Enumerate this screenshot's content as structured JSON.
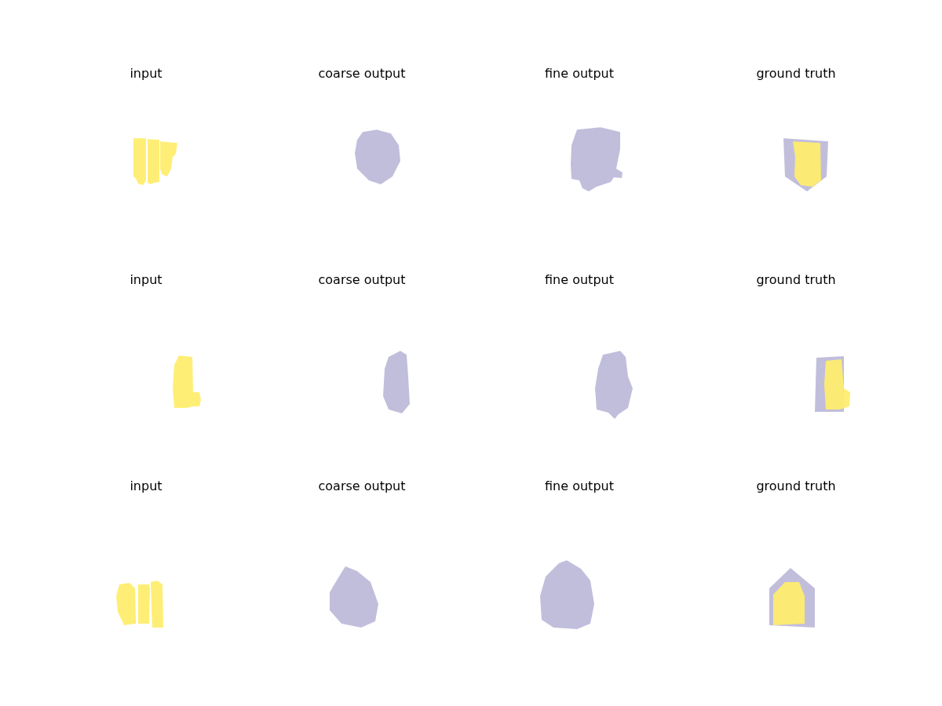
{
  "chart_data": [
    {
      "type": "scatter",
      "title": "input",
      "xlim": [
        0,
        280
      ],
      "ylim": [
        0,
        215
      ],
      "tick_labels": false,
      "grid": false,
      "series": [
        {
          "color": "#ffed6f",
          "values": [
            [
              124,
              149
            ],
            [
              140,
              149
            ],
            [
              140,
              95
            ],
            [
              136,
              89
            ],
            [
              130,
              91
            ],
            [
              126,
              99
            ],
            [
              124,
              99
            ]
          ]
        },
        {
          "color": "#ffed6f",
          "values": [
            [
              142,
              148
            ],
            [
              157,
              147
            ],
            [
              157,
              93
            ],
            [
              150,
              92
            ],
            [
              146,
              90
            ],
            [
              142,
              92
            ]
          ]
        },
        {
          "color": "#ffed6f",
          "values": [
            [
              158,
              145
            ],
            [
              180,
              143
            ],
            [
              178,
              129
            ],
            [
              174,
              125
            ],
            [
              172,
              110
            ],
            [
              167,
              100
            ],
            [
              160,
              103
            ],
            [
              158,
              110
            ]
          ]
        }
      ]
    },
    {
      "type": "scatter",
      "title": "coarse output",
      "xlim": [
        0,
        280
      ],
      "ylim": [
        0,
        215
      ],
      "tick_labels": false,
      "grid": false,
      "series": [
        {
          "color": "#bebada",
          "values": [
            [
              141,
              157
            ],
            [
              159,
              160
            ],
            [
              177,
              155
            ],
            [
              187,
              140
            ],
            [
              189,
              120
            ],
            [
              179,
              100
            ],
            [
              164,
              90
            ],
            [
              149,
              95
            ],
            [
              134,
              110
            ],
            [
              131,
              130
            ],
            [
              134,
              147
            ]
          ]
        }
      ]
    },
    {
      "type": "scatter",
      "title": "fine output",
      "xlim": [
        0,
        280
      ],
      "ylim": [
        0,
        215
      ],
      "tick_labels": false,
      "grid": false,
      "series": [
        {
          "color": "#bebada",
          "values": [
            [
              137,
              160
            ],
            [
              167,
              163
            ],
            [
              192,
              157
            ],
            [
              192,
              135
            ],
            [
              187,
              110
            ],
            [
              195,
              105
            ],
            [
              194,
              98
            ],
            [
              184,
              99
            ],
            [
              180,
              93
            ],
            [
              162,
              87
            ],
            [
              152,
              81
            ],
            [
              144,
              85
            ],
            [
              140,
              95
            ],
            [
              130,
              97
            ],
            [
              129,
              115
            ],
            [
              130,
              140
            ]
          ]
        }
      ]
    },
    {
      "type": "scatter",
      "title": "ground truth",
      "xlim": [
        0,
        280
      ],
      "ylim": [
        0,
        215
      ],
      "tick_labels": false,
      "grid": false,
      "series": [
        {
          "color": "#bebada",
          "values": [
            [
              124,
              149
            ],
            [
              181,
              145
            ],
            [
              179,
              100
            ],
            [
              154,
              81
            ],
            [
              126,
              100
            ]
          ]
        },
        {
          "color": "#ffed6f",
          "values": [
            [
              136,
              145
            ],
            [
              171,
              143
            ],
            [
              172,
              95
            ],
            [
              161,
              87
            ],
            [
              146,
              89
            ],
            [
              138,
              100
            ],
            [
              139,
              125
            ]
          ]
        }
      ]
    },
    {
      "type": "scatter",
      "title": "input",
      "xlim": [
        0,
        280
      ],
      "ylim": [
        0,
        215
      ],
      "tick_labels": false,
      "grid": false,
      "series": [
        {
          "color": "#ffed6f",
          "values": [
            [
              182,
              135
            ],
            [
              199,
              133
            ],
            [
              200,
              88
            ],
            [
              208,
              88
            ],
            [
              210,
              78
            ],
            [
              208,
              70
            ],
            [
              200,
              70
            ],
            [
              192,
              68
            ],
            [
              176,
              68
            ],
            [
              174,
              93
            ],
            [
              176,
              123
            ]
          ]
        }
      ]
    },
    {
      "type": "scatter",
      "title": "coarse output",
      "xlim": [
        0,
        280
      ],
      "ylim": [
        0,
        215
      ],
      "tick_labels": false,
      "grid": false,
      "series": [
        {
          "color": "#bebada",
          "values": [
            [
              174,
              133
            ],
            [
              189,
              141
            ],
            [
              197,
              136
            ],
            [
              199,
              108
            ],
            [
              201,
              73
            ],
            [
              191,
              61
            ],
            [
              174,
              66
            ],
            [
              167,
              83
            ],
            [
              169,
              118
            ]
          ]
        }
      ]
    },
    {
      "type": "scatter",
      "title": "fine output",
      "xlim": [
        0,
        280
      ],
      "ylim": [
        0,
        215
      ],
      "tick_labels": false,
      "grid": false,
      "series": [
        {
          "color": "#bebada",
          "values": [
            [
              170,
              136
            ],
            [
              192,
              141
            ],
            [
              199,
              133
            ],
            [
              202,
              108
            ],
            [
              208,
              93
            ],
            [
              202,
              68
            ],
            [
              190,
              60
            ],
            [
              185,
              54
            ],
            [
              177,
              62
            ],
            [
              162,
              66
            ],
            [
              160,
              93
            ],
            [
              164,
              118
            ]
          ]
        }
      ]
    },
    {
      "type": "scatter",
      "title": "ground truth",
      "xlim": [
        0,
        280
      ],
      "ylim": [
        0,
        215
      ],
      "tick_labels": false,
      "grid": false,
      "series": [
        {
          "color": "#bebada",
          "values": [
            [
              166,
              132
            ],
            [
              201,
              134
            ],
            [
              201,
              63
            ],
            [
              164,
              63
            ]
          ]
        },
        {
          "color": "#ffed6f",
          "values": [
            [
              178,
              128
            ],
            [
              198,
              130
            ],
            [
              201,
              93
            ],
            [
              209,
              88
            ],
            [
              208,
              70
            ],
            [
              196,
              66
            ],
            [
              178,
              66
            ],
            [
              176,
              98
            ]
          ]
        }
      ]
    },
    {
      "type": "scatter",
      "title": "input",
      "xlim": [
        0,
        280
      ],
      "ylim": [
        0,
        215
      ],
      "tick_labels": false,
      "grid": false,
      "series": [
        {
          "color": "#ffed6f",
          "values": [
            [
              106,
              106
            ],
            [
              119,
              108
            ],
            [
              126,
              101
            ],
            [
              127,
              56
            ],
            [
              112,
              54
            ],
            [
              104,
              71
            ],
            [
              102,
              91
            ]
          ]
        },
        {
          "color": "#ffed6f",
          "values": [
            [
              130,
              106
            ],
            [
              144,
              106
            ],
            [
              145,
              101
            ],
            [
              144,
              56
            ],
            [
              130,
              56
            ]
          ]
        },
        {
          "color": "#ffed6f",
          "values": [
            [
              146,
              109
            ],
            [
              154,
              111
            ],
            [
              161,
              106
            ],
            [
              162,
              51
            ],
            [
              148,
              51
            ],
            [
              147,
              76
            ]
          ]
        }
      ]
    },
    {
      "type": "scatter",
      "title": "coarse output",
      "xlim": [
        0,
        280
      ],
      "ylim": [
        0,
        215
      ],
      "tick_labels": false,
      "grid": false,
      "series": [
        {
          "color": "#bebada",
          "values": [
            [
              119,
              129
            ],
            [
              134,
              123
            ],
            [
              151,
              109
            ],
            [
              161,
              81
            ],
            [
              157,
              59
            ],
            [
              139,
              51
            ],
            [
              114,
              56
            ],
            [
              99,
              73
            ],
            [
              99,
              96
            ],
            [
              109,
              113
            ]
          ]
        }
      ]
    },
    {
      "type": "scatter",
      "title": "fine output",
      "xlim": [
        0,
        280
      ],
      "ylim": [
        0,
        215
      ],
      "tick_labels": false,
      "grid": false,
      "series": [
        {
          "color": "#bebada",
          "values": [
            [
              114,
              133
            ],
            [
              124,
              137
            ],
            [
              142,
              126
            ],
            [
              154,
              111
            ],
            [
              159,
              81
            ],
            [
              154,
              56
            ],
            [
              137,
              49
            ],
            [
              107,
              51
            ],
            [
              92,
              61
            ],
            [
              90,
              91
            ],
            [
              97,
              116
            ]
          ]
        }
      ]
    },
    {
      "type": "scatter",
      "title": "ground truth",
      "xlim": [
        0,
        280
      ],
      "ylim": [
        0,
        215
      ],
      "tick_labels": false,
      "grid": false,
      "series": [
        {
          "color": "#bebada",
          "values": [
            [
              106,
              101
            ],
            [
              133,
              127
            ],
            [
              164,
              101
            ],
            [
              164,
              51
            ],
            [
              106,
              54
            ]
          ]
        },
        {
          "color": "#ffed6f",
          "values": [
            [
              111,
              93
            ],
            [
              126,
              109
            ],
            [
              144,
              109
            ],
            [
              151,
              91
            ],
            [
              151,
              56
            ],
            [
              111,
              54
            ]
          ]
        }
      ]
    }
  ]
}
